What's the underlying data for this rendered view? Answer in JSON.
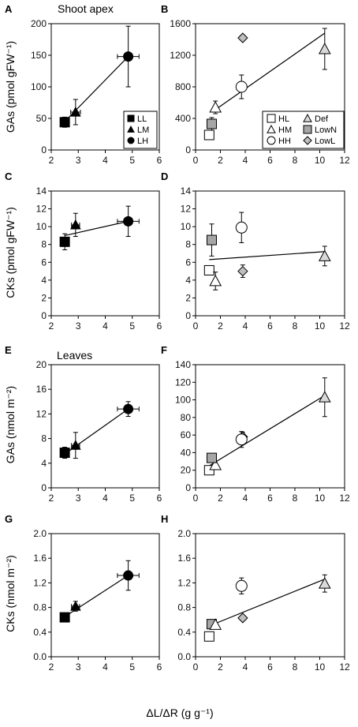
{
  "figure": {
    "x_axis_label": "ΔL/ΔR (g g⁻¹)",
    "left_x_ticks": [
      "2",
      "3",
      "4",
      "5",
      "6"
    ],
    "right_x_ticks": [
      "0",
      "2",
      "4",
      "6",
      "8",
      "10",
      "12"
    ],
    "row_labels": {
      "row1": "GAs (pmol gFW⁻¹)",
      "row2": "CKs (pmol gFW⁻¹)",
      "row3": "GAs (nmol m⁻²)",
      "row4": "CKs (nmol m⁻²)"
    },
    "annotations": {
      "shoot_apex": "Shoot apex",
      "leaves": "Leaves"
    },
    "legend_left": [
      {
        "label": "LL",
        "marker": "square",
        "fill": "#000000"
      },
      {
        "label": "LM",
        "marker": "triangle",
        "fill": "#000000"
      },
      {
        "label": "LH",
        "marker": "circle",
        "fill": "#000000"
      }
    ],
    "legend_right": [
      {
        "label": "HL",
        "marker": "square",
        "fill": "#ffffff"
      },
      {
        "label": "Def",
        "marker": "triangle",
        "fill": "#d9d9d9"
      },
      {
        "label": "HM",
        "marker": "triangle",
        "fill": "#ffffff"
      },
      {
        "label": "LowN",
        "marker": "square",
        "fill": "#a6a6a6"
      },
      {
        "label": "HH",
        "marker": "circle",
        "fill": "#ffffff"
      },
      {
        "label": "LowL",
        "marker": "diamond",
        "fill": "#bfbfbf"
      }
    ]
  },
  "chart_data": [
    {
      "panel": "A",
      "type": "scatter",
      "xlim": [
        2,
        6
      ],
      "xticks": [
        "2",
        "3",
        "4",
        "5",
        "6"
      ],
      "ylim": [
        0,
        200
      ],
      "yticks": [
        "0",
        "50",
        "100",
        "150",
        "200"
      ],
      "points": [
        {
          "group": "LL",
          "x": 2.5,
          "y": 44,
          "xerr": 0.15,
          "yerr": 8
        },
        {
          "group": "LM",
          "x": 2.9,
          "y": 60,
          "xerr": 0.18,
          "yerr": 20
        },
        {
          "group": "LH",
          "x": 4.85,
          "y": 148,
          "xerr": 0.4,
          "yerr": 48
        }
      ],
      "fit": [
        [
          2.5,
          45
        ],
        [
          4.85,
          148
        ]
      ]
    },
    {
      "panel": "B",
      "type": "scatter",
      "xlim": [
        0,
        12
      ],
      "xticks": [
        "0",
        "2",
        "4",
        "6",
        "8",
        "10",
        "12"
      ],
      "ylim": [
        0,
        1600
      ],
      "yticks": [
        "0",
        "400",
        "800",
        "1200",
        "1600"
      ],
      "points": [
        {
          "group": "HL",
          "x": 1.1,
          "y": 190,
          "xerr": 0,
          "yerr": 0
        },
        {
          "group": "LowN",
          "x": 1.3,
          "y": 330,
          "xerr": 0.2,
          "yerr": 80
        },
        {
          "group": "HM",
          "x": 1.6,
          "y": 540,
          "xerr": 0,
          "yerr": 80
        },
        {
          "group": "HH",
          "x": 3.7,
          "y": 800,
          "xerr": 0.4,
          "yerr": 150
        },
        {
          "group": "LowL",
          "x": 3.8,
          "y": 1420,
          "xerr": 0,
          "yerr": 0
        },
        {
          "group": "Def",
          "x": 10.4,
          "y": 1280,
          "xerr": 0,
          "yerr": 260
        }
      ],
      "fit": [
        [
          1.5,
          500
        ],
        [
          10.4,
          1480
        ]
      ]
    },
    {
      "panel": "C",
      "type": "scatter",
      "xlim": [
        2,
        6
      ],
      "xticks": [
        "2",
        "3",
        "4",
        "5",
        "6"
      ],
      "ylim": [
        0,
        14
      ],
      "yticks": [
        "0",
        "2",
        "4",
        "6",
        "8",
        "10",
        "12",
        "14"
      ],
      "points": [
        {
          "group": "LL",
          "x": 2.5,
          "y": 8.3,
          "xerr": 0.15,
          "yerr": 0.9
        },
        {
          "group": "LM",
          "x": 2.9,
          "y": 10.2,
          "xerr": 0.15,
          "yerr": 1.3
        },
        {
          "group": "LH",
          "x": 4.85,
          "y": 10.6,
          "xerr": 0.4,
          "yerr": 1.7
        }
      ],
      "fit": [
        [
          2.5,
          9.0
        ],
        [
          4.85,
          10.6
        ]
      ]
    },
    {
      "panel": "D",
      "type": "scatter",
      "xlim": [
        0,
        12
      ],
      "xticks": [
        "0",
        "2",
        "4",
        "6",
        "8",
        "10",
        "12"
      ],
      "ylim": [
        0,
        14
      ],
      "yticks": [
        "0",
        "2",
        "4",
        "6",
        "8",
        "10",
        "12",
        "14"
      ],
      "points": [
        {
          "group": "HL",
          "x": 1.1,
          "y": 5.1,
          "xerr": 0.15,
          "yerr": 0.5
        },
        {
          "group": "LowN",
          "x": 1.3,
          "y": 8.5,
          "xerr": 0,
          "yerr": 1.8
        },
        {
          "group": "HM",
          "x": 1.6,
          "y": 3.9,
          "xerr": 0,
          "yerr": 1.0
        },
        {
          "group": "HH",
          "x": 3.7,
          "y": 9.9,
          "xerr": 0.4,
          "yerr": 1.7
        },
        {
          "group": "LowL",
          "x": 3.8,
          "y": 5.0,
          "xerr": 0,
          "yerr": 0.7
        },
        {
          "group": "Def",
          "x": 10.4,
          "y": 6.7,
          "xerr": 0,
          "yerr": 1.1
        }
      ],
      "fit": [
        [
          1.1,
          6.3
        ],
        [
          10.4,
          7.2
        ]
      ]
    },
    {
      "panel": "E",
      "type": "scatter",
      "xlim": [
        2,
        6
      ],
      "xticks": [
        "2",
        "3",
        "4",
        "5",
        "6"
      ],
      "ylim": [
        0,
        20
      ],
      "yticks": [
        "0",
        "4",
        "8",
        "12",
        "16",
        "20"
      ],
      "points": [
        {
          "group": "LL",
          "x": 2.5,
          "y": 5.7,
          "xerr": 0.15,
          "yerr": 0.9
        },
        {
          "group": "LM",
          "x": 2.9,
          "y": 6.9,
          "xerr": 0.15,
          "yerr": 2.1
        },
        {
          "group": "LH",
          "x": 4.85,
          "y": 12.8,
          "xerr": 0.4,
          "yerr": 1.2
        }
      ],
      "fit": [
        [
          2.5,
          5.5
        ],
        [
          4.85,
          12.8
        ]
      ]
    },
    {
      "panel": "F",
      "type": "scatter",
      "xlim": [
        0,
        12
      ],
      "xticks": [
        "0",
        "2",
        "4",
        "6",
        "8",
        "10",
        "12"
      ],
      "ylim": [
        0,
        140
      ],
      "yticks": [
        "0",
        "20",
        "40",
        "60",
        "80",
        "100",
        "120",
        "140"
      ],
      "points": [
        {
          "group": "HL",
          "x": 1.1,
          "y": 20,
          "xerr": 0,
          "yerr": 0
        },
        {
          "group": "HM",
          "x": 1.6,
          "y": 26,
          "xerr": 0,
          "yerr": 0
        },
        {
          "group": "LowN",
          "x": 1.3,
          "y": 34,
          "xerr": 0.2,
          "yerr": 5
        },
        {
          "group": "LowL",
          "x": 3.8,
          "y": 58,
          "xerr": 0,
          "yerr": 5
        },
        {
          "group": "HH",
          "x": 3.7,
          "y": 55,
          "xerr": 0.4,
          "yerr": 9
        },
        {
          "group": "Def",
          "x": 10.4,
          "y": 103,
          "xerr": 0,
          "yerr": 22
        }
      ],
      "fit": [
        [
          1.1,
          25
        ],
        [
          10.4,
          105
        ]
      ]
    },
    {
      "panel": "G",
      "type": "scatter",
      "xlim": [
        2,
        6
      ],
      "xticks": [
        "2",
        "3",
        "4",
        "5",
        "6"
      ],
      "ylim": [
        0,
        2
      ],
      "yticks": [
        "0.0",
        "0.4",
        "0.8",
        "1.2",
        "1.6",
        "2.0"
      ],
      "points": [
        {
          "group": "LL",
          "x": 2.5,
          "y": 0.64,
          "xerr": 0.15,
          "yerr": 0.05
        },
        {
          "group": "LM",
          "x": 2.9,
          "y": 0.82,
          "xerr": 0.15,
          "yerr": 0.08
        },
        {
          "group": "LH",
          "x": 4.85,
          "y": 1.32,
          "xerr": 0.4,
          "yerr": 0.24
        }
      ],
      "fit": [
        [
          2.5,
          0.65
        ],
        [
          4.85,
          1.32
        ]
      ]
    },
    {
      "panel": "H",
      "type": "scatter",
      "xlim": [
        0,
        12
      ],
      "xticks": [
        "0",
        "2",
        "4",
        "6",
        "8",
        "10",
        "12"
      ],
      "ylim": [
        0,
        2
      ],
      "yticks": [
        "0.0",
        "0.4",
        "0.8",
        "1.2",
        "1.6",
        "2.0"
      ],
      "points": [
        {
          "group": "HL",
          "x": 1.1,
          "y": 0.33,
          "xerr": 0,
          "yerr": 0
        },
        {
          "group": "LowN",
          "x": 1.3,
          "y": 0.53,
          "xerr": 0.2,
          "yerr": 0
        },
        {
          "group": "HM",
          "x": 1.6,
          "y": 0.52,
          "xerr": 0,
          "yerr": 0
        },
        {
          "group": "HH",
          "x": 3.7,
          "y": 1.15,
          "xerr": 0.4,
          "yerr": 0.13
        },
        {
          "group": "LowL",
          "x": 3.8,
          "y": 0.63,
          "xerr": 0,
          "yerr": 0
        },
        {
          "group": "Def",
          "x": 10.4,
          "y": 1.19,
          "xerr": 0,
          "yerr": 0.14
        }
      ],
      "fit": [
        [
          1.1,
          0.5
        ],
        [
          10.4,
          1.26
        ]
      ]
    }
  ]
}
